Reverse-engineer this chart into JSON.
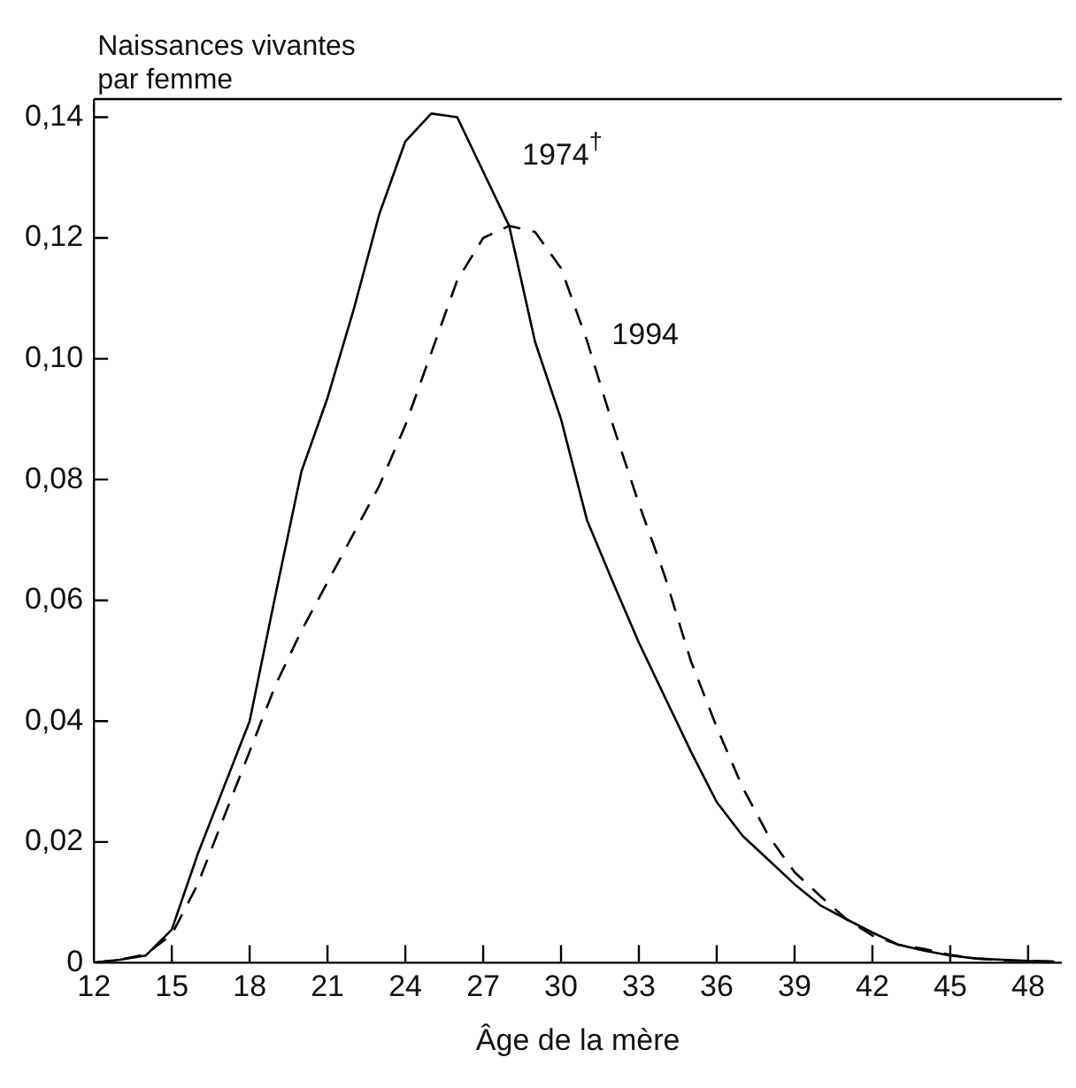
{
  "chart_data": {
    "type": "line",
    "xlabel": "Âge de la mère",
    "ylabel": "Naissances vivantes\npar femme",
    "xlim": [
      12,
      49.3
    ],
    "xticks": [
      12,
      15,
      18,
      21,
      24,
      27,
      30,
      33,
      36,
      39,
      42,
      45,
      48
    ],
    "ylim": [
      0,
      0.143
    ],
    "yticks": [
      0,
      {
        "value": 0.02,
        "label": "0,02"
      },
      {
        "value": 0.04,
        "label": "0,04"
      },
      {
        "value": 0.06,
        "label": "0,06"
      },
      {
        "value": 0.08,
        "label": "0,08"
      },
      {
        "value": 0.1,
        "label": "0,10"
      },
      {
        "value": 0.12,
        "label": "0,12"
      },
      {
        "value": 0.14,
        "label": "0,14"
      }
    ],
    "grid": false,
    "legend": false,
    "marker": "none",
    "series": [
      {
        "name": "1974$^{†}$",
        "color": "#000000",
        "line_style": "solid",
        "x": [
          12,
          13,
          14,
          15,
          16,
          17,
          18,
          19,
          20,
          21,
          22,
          23,
          24,
          25,
          26,
          27,
          28,
          29,
          30,
          31,
          32,
          33,
          34,
          35,
          36,
          37,
          38,
          39,
          40,
          41,
          42,
          43,
          44,
          45,
          46,
          47,
          48,
          49
        ],
        "values": [
          0,
          0.0005,
          0.0012,
          0.0055,
          0.018,
          0.029,
          0.04,
          0.061,
          0.0814,
          0.0935,
          0.108,
          0.124,
          0.136,
          0.1406,
          0.14,
          0.131,
          0.122,
          0.1028,
          0.09,
          0.0733,
          0.063,
          0.053,
          0.044,
          0.035,
          0.0266,
          0.021,
          0.017,
          0.013,
          0.0095,
          0.0072,
          0.005,
          0.003,
          0.002,
          0.0012,
          0.0007,
          0.0005,
          0.0003,
          0.0002
        ]
      },
      {
        "name": "1994",
        "color": "#000000",
        "line_style": "dashed",
        "x": [
          12,
          13,
          14,
          15,
          16,
          17,
          18,
          19,
          20,
          21,
          22,
          23,
          24,
          25,
          26,
          27,
          28,
          29,
          30,
          31,
          32,
          33,
          34,
          35,
          36,
          37,
          38,
          39,
          40,
          41,
          42,
          43,
          44,
          45,
          46,
          47,
          48,
          49
        ],
        "values": [
          0,
          0.0005,
          0.0014,
          0.0047,
          0.013,
          0.024,
          0.035,
          0.046,
          0.055,
          0.063,
          0.071,
          0.079,
          0.089,
          0.101,
          0.113,
          0.12,
          0.122,
          0.121,
          0.115,
          0.103,
          0.089,
          0.076,
          0.064,
          0.05,
          0.039,
          0.029,
          0.021,
          0.015,
          0.011,
          0.0072,
          0.0045,
          0.003,
          0.0023,
          0.0013,
          0.0007,
          0.0004,
          0.0003,
          0.0002
        ]
      }
    ]
  }
}
